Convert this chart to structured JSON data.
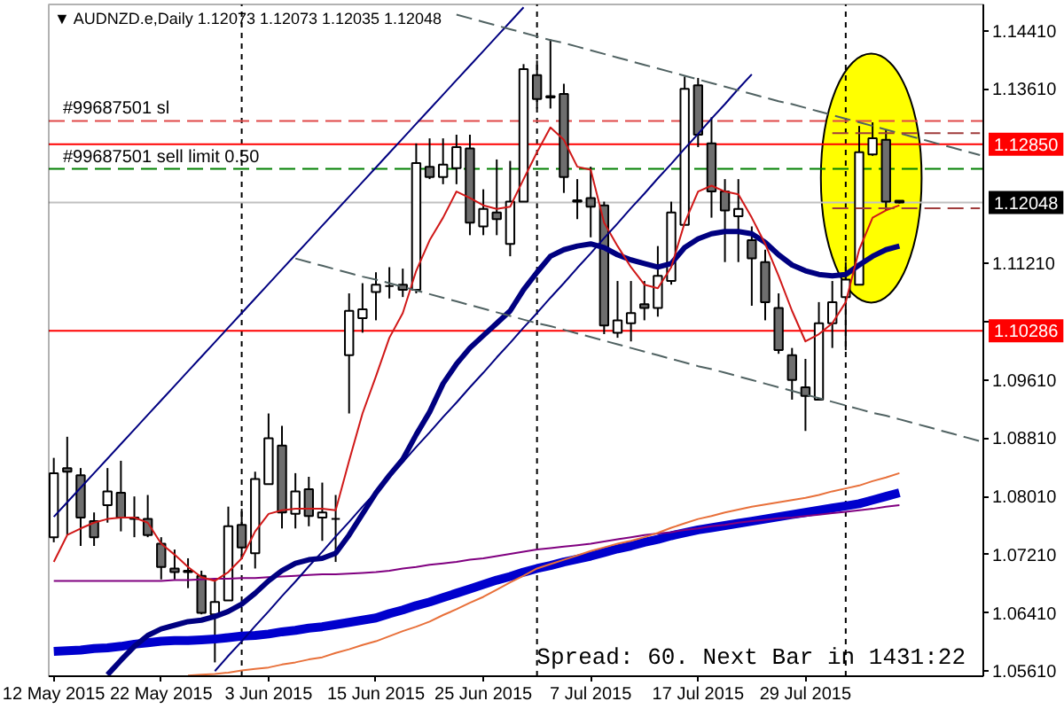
{
  "chart_data": {
    "type": "candlestick",
    "title": "▼ AUDNZD.e,Daily  1.12073 1.12073 1.12035 1.12048",
    "categories": [
      "12 May 2015",
      null,
      null,
      null,
      null,
      null,
      null,
      null,
      "22 May 2015",
      null,
      null,
      null,
      null,
      null,
      null,
      null,
      "3 Jun 2015",
      null,
      null,
      null,
      null,
      null,
      null,
      null,
      "15 Jun 2015",
      null,
      null,
      null,
      null,
      null,
      null,
      null,
      "25 Jun 2015",
      null,
      null,
      null,
      null,
      null,
      null,
      null,
      "7 Jul 2015",
      null,
      null,
      null,
      null,
      null,
      null,
      null,
      "17 Jul 2015",
      null,
      null,
      null,
      null,
      null,
      null,
      null,
      "29 Jul 2015",
      null,
      null,
      null,
      null,
      null,
      null,
      null,
      null,
      null,
      null,
      null,
      null,
      null
    ],
    "ohlc": [
      [
        1.0745,
        1.0854,
        1.0738,
        1.0833
      ],
      [
        1.084,
        1.0883,
        1.0748,
        1.0835
      ],
      [
        1.083,
        1.084,
        1.0733,
        1.0772
      ],
      [
        1.0767,
        1.0779,
        1.0733,
        1.0745
      ],
      [
        1.0789,
        1.084,
        1.0765,
        1.0808
      ],
      [
        1.0806,
        1.085,
        1.0753,
        1.0772
      ],
      [
        1.0772,
        1.0801,
        1.0745,
        1.077
      ],
      [
        1.077,
        1.0803,
        1.0745,
        1.0748
      ],
      [
        1.0736,
        1.0745,
        1.0687,
        1.0704
      ],
      [
        1.0702,
        1.0728,
        1.0687,
        1.0697
      ],
      [
        1.0699,
        1.0716,
        1.0675,
        1.0697
      ],
      [
        1.0692,
        1.0699,
        1.0639,
        1.0641
      ],
      [
        1.0639,
        1.0687,
        1.0573,
        1.0656
      ],
      [
        1.0658,
        1.0787,
        1.0658,
        1.076
      ],
      [
        1.0762,
        1.0784,
        1.0716,
        1.0731
      ],
      [
        1.0723,
        1.0835,
        1.0702,
        1.0825
      ],
      [
        1.0818,
        1.0915,
        1.0818,
        1.0881
      ],
      [
        1.0871,
        1.0898,
        1.0757,
        1.0779
      ],
      [
        1.0777,
        1.0833,
        1.0757,
        1.0808
      ],
      [
        1.0811,
        1.0828,
        1.076,
        1.0774
      ],
      [
        1.0772,
        1.082,
        1.074,
        1.0779
      ],
      [
        1.077,
        1.0803,
        1.0711,
        1.077
      ],
      [
        1.0995,
        1.108,
        1.0915,
        1.1056
      ],
      [
        1.1046,
        1.1094,
        1.1026,
        1.1058
      ],
      [
        1.1082,
        1.1109,
        1.1043,
        1.1092
      ],
      [
        1.109,
        1.1116,
        1.1073,
        1.109
      ],
      [
        1.1092,
        1.1114,
        1.1075,
        1.1085
      ],
      [
        1.1085,
        1.1286,
        1.108,
        1.1259
      ],
      [
        1.1254,
        1.1293,
        1.1237,
        1.124
      ],
      [
        1.124,
        1.1293,
        1.123,
        1.1257
      ],
      [
        1.1252,
        1.1298,
        1.123,
        1.1281
      ],
      [
        1.1279,
        1.1298,
        1.116,
        1.1177
      ],
      [
        1.1172,
        1.1223,
        1.116,
        1.1196
      ],
      [
        1.1191,
        1.1264,
        1.116,
        1.1182
      ],
      [
        1.1148,
        1.1262,
        1.1131,
        1.1206
      ],
      [
        1.1206,
        1.1395,
        1.1206,
        1.1388
      ],
      [
        1.138,
        1.14,
        1.1334,
        1.1347
      ],
      [
        1.1351,
        1.1429,
        1.1334,
        1.1349
      ],
      [
        1.1354,
        1.1368,
        1.1218,
        1.124
      ],
      [
        1.1206,
        1.1237,
        1.1182,
        1.1208
      ],
      [
        1.1211,
        1.1254,
        1.1157,
        1.1199
      ],
      [
        1.1201,
        1.1206,
        1.1024,
        1.1036
      ],
      [
        1.1026,
        1.1097,
        1.1019,
        1.1043
      ],
      [
        1.1039,
        1.1097,
        1.1014,
        1.1053
      ],
      [
        1.1065,
        1.1097,
        1.1043,
        1.106
      ],
      [
        1.106,
        1.1145,
        1.1048,
        1.1104
      ],
      [
        1.1097,
        1.1206,
        1.1092,
        1.1191
      ],
      [
        1.1174,
        1.1378,
        1.1174,
        1.1361
      ],
      [
        1.1366,
        1.1376,
        1.1281,
        1.1298
      ],
      [
        1.1286,
        1.1322,
        1.1184,
        1.122
      ],
      [
        1.122,
        1.1237,
        1.1123,
        1.1194
      ],
      [
        1.1186,
        1.1237,
        1.1123,
        1.1196
      ],
      [
        1.1153,
        1.1172,
        1.1063,
        1.1128
      ],
      [
        1.1123,
        1.114,
        1.1043,
        1.1068
      ],
      [
        1.106,
        1.108,
        1.0997,
        1.1002
      ],
      [
        1.0995,
        1.1005,
        1.0934,
        1.0961
      ],
      [
        1.0951,
        1.099,
        1.0891,
        1.0939
      ],
      [
        1.0934,
        1.1068,
        1.0934,
        1.1039
      ],
      [
        1.1039,
        1.1097,
        1.1005,
        1.1068
      ],
      [
        1.1075,
        1.1123,
        1.1002,
        1.1099
      ],
      [
        1.1092,
        1.131,
        1.1092,
        1.1274
      ],
      [
        1.1271,
        1.1315,
        1.1269,
        1.1293
      ],
      [
        1.1291,
        1.1305,
        1.1194,
        1.1206
      ],
      [
        1.12073,
        1.12073,
        1.12035,
        1.12048
      ],
      null,
      null,
      null,
      null,
      null,
      null
    ],
    "colors": [
      "#ffffff",
      "#6e6e6e",
      "#6e6e6e",
      "#6e6e6e",
      "#ffffff",
      "#6e6e6e",
      "#6e6e6e",
      "#6e6e6e",
      "#6e6e6e",
      "#6e6e6e",
      "#6e6e6e",
      "#6e6e6e",
      "#ffffff",
      "#ffffff",
      "#6e6e6e",
      "#ffffff",
      "#ffffff",
      "#6e6e6e",
      "#ffffff",
      "#6e6e6e",
      "#ffffff",
      "#000000",
      "#ffffff",
      "#ffffff",
      "#ffffff",
      "#000000",
      "#6e6e6e",
      "#ffffff",
      "#6e6e6e",
      "#ffffff",
      "#ffffff",
      "#6e6e6e",
      "#ffffff",
      "#6e6e6e",
      "#ffffff",
      "#ffffff",
      "#6e6e6e",
      "#6e6e6e",
      "#6e6e6e",
      "#ffffff",
      "#6e6e6e",
      "#6e6e6e",
      "#ffffff",
      "#ffffff",
      "#6e6e6e",
      "#ffffff",
      "#ffffff",
      "#ffffff",
      "#6e6e6e",
      "#6e6e6e",
      "#6e6e6e",
      "#ffffff",
      "#6e6e6e",
      "#6e6e6e",
      "#6e6e6e",
      "#6e6e6e",
      "#6e6e6e",
      "#ffffff",
      "#ffffff",
      "#ffffff",
      "#ffffff",
      "#ffffff",
      "#6e6e6e",
      "#6e6e6e",
      null,
      null,
      null,
      null,
      null,
      null
    ],
    "ylim": [
      1.0554,
      1.1477
    ],
    "yticks": [
      {
        "value": 1.1441,
        "label": "1.14410"
      },
      {
        "value": 1.1361,
        "label": "1.13610"
      },
      {
        "value": 1.1121,
        "label": "1.11210"
      },
      {
        "value": 1.1041,
        "label": null
      },
      {
        "value": 1.0961,
        "label": "1.09610"
      },
      {
        "value": 1.0881,
        "label": "1.08810"
      },
      {
        "value": 1.0801,
        "label": "1.08010"
      },
      {
        "value": 1.0721,
        "label": "1.07210"
      },
      {
        "value": 1.0641,
        "label": "1.06410"
      },
      {
        "value": 1.0561,
        "label": "1.05610"
      }
    ],
    "series": [
      {
        "type": "line",
        "color": "#0000cd",
        "values": [
          1.0588,
          1.0589,
          1.059,
          1.0592,
          1.0593,
          1.0595,
          1.0598,
          1.06,
          1.0602,
          1.0603,
          1.0603,
          1.0604,
          1.0605,
          1.0607,
          1.0609,
          1.061,
          1.0612,
          1.0615,
          1.0617,
          1.062,
          1.0622,
          1.0625,
          1.0628,
          1.0631,
          1.0634,
          1.064,
          1.0645,
          1.0651,
          1.0656,
          1.0662,
          1.0668,
          1.0674,
          1.068,
          1.0686,
          1.0691,
          1.0697,
          1.0702,
          1.0706,
          1.0711,
          1.0715,
          1.0719,
          1.0724,
          1.0729,
          1.0733,
          1.0738,
          1.0742,
          1.0747,
          1.0751,
          1.0755,
          1.0758,
          1.0761,
          1.0764,
          1.0767,
          1.077,
          1.0773,
          1.0776,
          1.0779,
          1.0782,
          1.0785,
          1.0788,
          1.0791,
          1.0796,
          1.0801,
          1.0806,
          null,
          null,
          null,
          null,
          null,
          null
        ]
      },
      {
        "type": "line",
        "color": "#800080",
        "values": [
          1.0685,
          1.0685,
          1.0685,
          1.0685,
          1.0685,
          1.0685,
          1.0685,
          1.0685,
          1.0685,
          1.0686,
          1.0686,
          1.0687,
          1.0688,
          1.0688,
          1.0689,
          1.0689,
          1.069,
          1.0691,
          1.0692,
          1.0693,
          1.0694,
          1.0694,
          1.0695,
          1.0696,
          1.0697,
          1.0699,
          1.0702,
          1.0704,
          1.0707,
          1.0709,
          1.0711,
          1.0714,
          1.0716,
          1.0719,
          1.0722,
          1.0725,
          1.0728,
          1.073,
          1.0732,
          1.0734,
          1.0736,
          1.0739,
          1.0742,
          1.0745,
          1.0748,
          1.075,
          1.0752,
          1.0755,
          1.0757,
          1.076,
          1.0762,
          1.0765,
          1.0767,
          1.0769,
          1.0771,
          1.0772,
          1.0774,
          1.0776,
          1.0778,
          1.078,
          1.0782,
          1.0784,
          1.0787,
          1.0789,
          null,
          null,
          null,
          null,
          null,
          null
        ]
      },
      {
        "type": "line",
        "color": "#e8703a",
        "values": [
          null,
          null,
          null,
          null,
          null,
          null,
          null,
          null,
          null,
          null,
          1.0555,
          1.0556,
          1.0557,
          1.0559,
          1.0562,
          1.0564,
          1.0566,
          1.057,
          1.0573,
          1.0577,
          1.058,
          1.0586,
          1.0591,
          1.0597,
          1.0602,
          1.0609,
          1.0616,
          1.0622,
          1.0629,
          1.0638,
          1.0646,
          1.0655,
          1.0663,
          1.0673,
          1.0683,
          1.0692,
          1.0702,
          1.0708,
          1.0714,
          1.072,
          1.0726,
          1.0731,
          1.0736,
          1.074,
          1.0745,
          1.0751,
          1.0758,
          1.0764,
          1.077,
          1.0774,
          1.0779,
          1.0783,
          1.0787,
          1.079,
          1.0793,
          1.0796,
          1.0799,
          1.0803,
          1.0808,
          1.0812,
          1.0816,
          1.0822,
          1.0827,
          1.0833,
          null,
          null,
          null,
          null,
          null,
          null
        ]
      },
      {
        "type": "line",
        "color": "#000080",
        "values": [
          null,
          null,
          null,
          null,
          1.0556,
          1.0576,
          1.0595,
          1.061,
          1.0619,
          1.0624,
          1.0629,
          1.0631,
          1.0636,
          1.0643,
          1.0653,
          1.0668,
          1.0685,
          1.0699,
          1.0709,
          1.0714,
          1.0716,
          1.0723,
          1.0748,
          1.0777,
          1.0806,
          1.083,
          1.0852,
          1.0886,
          1.0917,
          1.0956,
          1.0983,
          1.1005,
          1.1022,
          1.1039,
          1.1056,
          1.1085,
          1.1109,
          1.1131,
          1.114,
          1.1145,
          1.1148,
          1.1143,
          1.1133,
          1.1126,
          1.1121,
          1.1116,
          1.1121,
          1.1143,
          1.1155,
          1.1162,
          1.1165,
          1.1165,
          1.1162,
          1.115,
          1.1133,
          1.1119,
          1.1111,
          1.1106,
          1.1104,
          1.1106,
          1.1119,
          1.1131,
          1.114,
          1.1145,
          null,
          null,
          null,
          null,
          null,
          null
        ]
      },
      {
        "type": "line",
        "color": "#d01818",
        "values": [
          1.0711,
          1.0748,
          1.0757,
          1.0765,
          1.077,
          1.0772,
          1.0772,
          1.0765,
          1.0736,
          1.0721,
          1.0704,
          1.069,
          1.0685,
          1.0697,
          1.0716,
          1.0753,
          1.0777,
          1.0782,
          1.0784,
          1.0784,
          1.0784,
          1.0782,
          1.085,
          1.0915,
          1.0966,
          1.1019,
          1.1053,
          1.1111,
          1.1153,
          1.1184,
          1.122,
          1.1211,
          1.1201,
          1.1196,
          1.1199,
          1.1237,
          1.1274,
          1.1308,
          1.1291,
          1.1254,
          1.125,
          1.1177,
          1.1145,
          1.1116,
          1.1092,
          1.1087,
          1.1116,
          1.1177,
          1.122,
          1.1228,
          1.122,
          1.1216,
          1.1184,
          1.1148,
          1.1104,
          1.1056,
          1.1014,
          1.1024,
          1.1039,
          1.1068,
          1.114,
          1.1184,
          1.1194,
          1.1201,
          null,
          null,
          null,
          null,
          null,
          null
        ]
      },
      {
        "type": "line",
        "color": "#000080",
        "values": [
          1.0773,
          1.0793,
          1.0813,
          1.0833,
          1.0853,
          1.0873,
          1.0893,
          1.0913,
          1.0933,
          1.0953,
          1.0973,
          1.0993,
          1.1013,
          1.1033,
          1.1053,
          1.1073,
          1.1093,
          1.1113,
          1.1133,
          1.1153,
          1.1173,
          1.1193,
          1.1213,
          1.1233,
          1.1253,
          1.1273,
          1.1293,
          1.1313,
          1.1333,
          1.1353,
          1.1373,
          1.1393,
          1.1413,
          1.1433,
          1.1453,
          1.1473,
          null,
          null,
          null,
          null,
          null,
          null,
          null,
          null,
          null,
          null,
          null,
          null,
          null,
          null,
          null,
          null,
          null,
          null,
          null,
          null,
          null,
          null,
          null,
          null,
          null,
          null,
          null,
          null,
          null,
          null,
          null,
          null,
          null,
          null
        ]
      },
      {
        "type": "line",
        "color": "#000080",
        "values": [
          null,
          null,
          null,
          null,
          null,
          null,
          null,
          null,
          null,
          null,
          null,
          null,
          1.0561,
          1.0582,
          1.0602,
          1.0623,
          1.0643,
          1.0664,
          1.0684,
          1.0705,
          1.0725,
          1.0746,
          1.0766,
          1.0787,
          1.0807,
          1.0828,
          1.0848,
          1.0869,
          1.0889,
          1.091,
          1.093,
          1.0951,
          1.0971,
          1.0992,
          1.1012,
          1.1033,
          1.1053,
          1.1074,
          1.1094,
          1.1115,
          1.1135,
          1.1156,
          1.1176,
          1.1197,
          1.1217,
          1.1238,
          1.1258,
          1.1279,
          1.1299,
          1.132,
          1.134,
          1.1361,
          1.1381,
          null,
          null,
          null,
          null,
          null,
          null,
          null,
          null,
          null,
          null,
          null,
          null,
          null,
          null,
          null,
          null,
          null
        ]
      },
      {
        "type": "line",
        "color": "#506262",
        "line_style": "dashed",
        "values": [
          null,
          null,
          null,
          null,
          null,
          null,
          null,
          null,
          null,
          null,
          null,
          null,
          null,
          null,
          null,
          null,
          null,
          null,
          null,
          null,
          null,
          null,
          null,
          null,
          null,
          null,
          null,
          null,
          null,
          null,
          1.1463,
          1.1458,
          1.1453,
          1.1448,
          1.1443,
          1.1438,
          1.1433,
          1.1428,
          1.1424,
          1.1419,
          1.1414,
          1.1409,
          1.1404,
          1.1399,
          1.1394,
          1.1389,
          1.1384,
          1.1379,
          1.1374,
          1.1369,
          1.1364,
          1.1359,
          1.1354,
          1.1349,
          1.1344,
          1.134,
          1.1335,
          1.133,
          1.1325,
          1.132,
          1.1315,
          1.131,
          1.1305,
          1.13,
          1.1295,
          1.129,
          1.1285,
          1.128,
          1.1275,
          1.127
        ]
      },
      {
        "type": "line",
        "color": "#506262",
        "line_style": "dashed",
        "values": [
          null,
          null,
          null,
          null,
          null,
          null,
          null,
          null,
          null,
          null,
          null,
          null,
          null,
          null,
          null,
          null,
          null,
          null,
          1.1128,
          1.1123,
          1.1118,
          1.1113,
          1.1108,
          1.1103,
          1.1099,
          1.1094,
          1.1089,
          1.1084,
          1.1079,
          1.1074,
          1.1069,
          1.1064,
          1.1059,
          1.1054,
          1.1049,
          1.1044,
          1.1039,
          1.1035,
          1.103,
          1.1025,
          1.102,
          1.1015,
          1.101,
          1.1005,
          1.1,
          1.0995,
          1.099,
          1.0985,
          1.098,
          1.0976,
          1.0971,
          1.0966,
          1.0961,
          1.0956,
          1.0951,
          1.0946,
          1.0941,
          1.0936,
          1.0931,
          1.0926,
          1.0921,
          1.0916,
          1.0912,
          1.0907,
          1.0902,
          1.0897,
          1.0892,
          1.0887,
          1.0882,
          1.0877
        ]
      },
      {
        "type": "line",
        "color": "#a03c3c",
        "line_style": "dashed",
        "values": [
          null,
          null,
          null,
          null,
          null,
          null,
          null,
          null,
          null,
          null,
          null,
          null,
          null,
          null,
          null,
          null,
          null,
          null,
          null,
          null,
          null,
          null,
          null,
          null,
          null,
          null,
          null,
          null,
          null,
          null,
          null,
          null,
          null,
          null,
          null,
          null,
          null,
          null,
          null,
          null,
          null,
          null,
          null,
          null,
          null,
          null,
          null,
          null,
          null,
          null,
          null,
          null,
          null,
          null,
          null,
          null,
          null,
          null,
          1.13,
          1.13,
          1.13,
          1.13,
          1.13,
          1.13,
          1.13,
          1.13,
          1.13,
          1.13,
          1.13,
          1.13
        ]
      },
      {
        "type": "line",
        "color": "#a03c3c",
        "line_style": "dashed",
        "values": [
          null,
          null,
          null,
          null,
          null,
          null,
          null,
          null,
          null,
          null,
          null,
          null,
          null,
          null,
          null,
          null,
          null,
          null,
          null,
          null,
          null,
          null,
          null,
          null,
          null,
          null,
          null,
          null,
          null,
          null,
          null,
          null,
          null,
          null,
          null,
          null,
          null,
          null,
          null,
          null,
          null,
          null,
          null,
          null,
          null,
          null,
          null,
          null,
          null,
          null,
          null,
          null,
          null,
          null,
          null,
          null,
          null,
          null,
          1.1197,
          1.1197,
          1.1197,
          1.1197,
          1.1197,
          1.1197,
          1.1197,
          1.1197,
          1.1197,
          1.1197,
          1.1197,
          1.1197
        ]
      }
    ],
    "ref_lines": [
      {
        "axis": "y",
        "value": 1.1317,
        "label": "#99687501 sl",
        "color": "#e04848",
        "line_style": "dashed"
      },
      {
        "axis": "y",
        "value": 1.1285,
        "label": "1.12850",
        "color": "#ff0000"
      },
      {
        "axis": "y",
        "value": 1.1251,
        "label": "#99687501 sell limit 0.50",
        "color": "#008000",
        "line_style": "dashed"
      },
      {
        "axis": "y",
        "value": 1.12048,
        "label": "1.12048",
        "color": "#c0c0c0"
      },
      {
        "axis": "y",
        "value": 1.10286,
        "label": "1.10286",
        "color": "#ff0000"
      }
    ],
    "annotations": [
      "Spread: 60. Next Bar in 1431:22"
    ]
  }
}
